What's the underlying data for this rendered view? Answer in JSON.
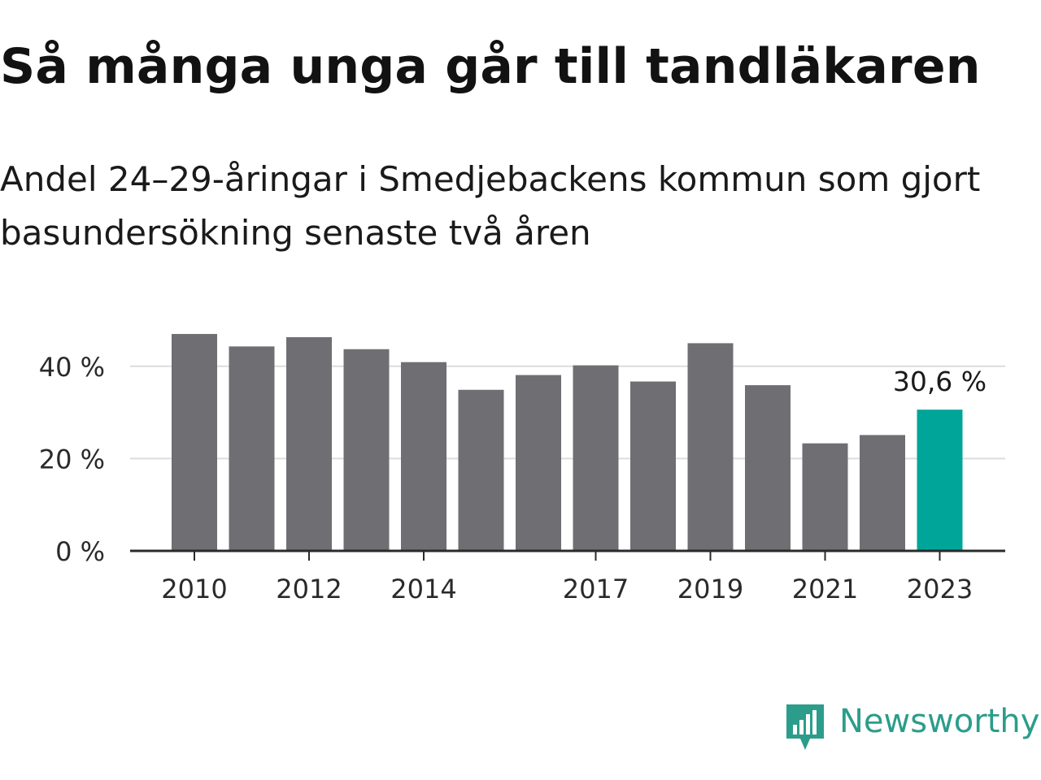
{
  "header": {
    "title": "Så många unga går till tandläkaren",
    "subtitle": "Andel 24–29-åringar i Smedjebackens kommun som gjort basundersökning senaste två åren"
  },
  "chart_data": {
    "type": "bar",
    "categories": [
      "2010",
      "2011",
      "2012",
      "2013",
      "2014",
      "2015",
      "2016",
      "2017",
      "2018",
      "2019",
      "2020",
      "2021",
      "2022",
      "2023"
    ],
    "values": [
      47.0,
      44.3,
      46.3,
      43.7,
      40.9,
      34.9,
      38.1,
      40.2,
      36.7,
      45.0,
      35.9,
      23.3,
      25.1,
      30.6
    ],
    "x_tick_labels": [
      "2010",
      "2012",
      "2014",
      "2017",
      "2019",
      "2021",
      "2023"
    ],
    "y_ticks": [
      {
        "value": 0,
        "label": "0 %"
      },
      {
        "value": 20,
        "label": "20 %"
      },
      {
        "value": 40,
        "label": "40 %"
      }
    ],
    "ylim": [
      0,
      50
    ],
    "highlight": {
      "category": "2023",
      "label": "30,6 %"
    },
    "colors": {
      "bar": "#6f6e73",
      "highlight": "#00a59a",
      "grid": "#dcdcdc",
      "axis": "#2a2a2a"
    },
    "grid": true
  },
  "branding": {
    "name": "Newsworthy",
    "color": "#2b9d8a"
  }
}
